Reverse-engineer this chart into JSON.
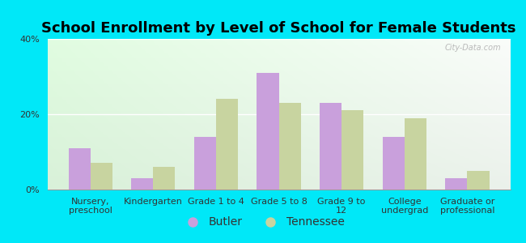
{
  "title": "School Enrollment by Level of School for Female Students",
  "categories": [
    "Nursery,\npreschool",
    "Kindergarten",
    "Grade 1 to 4",
    "Grade 5 to 8",
    "Grade 9 to\n12",
    "College\nundergrad",
    "Graduate or\nprofessional"
  ],
  "butler_values": [
    11,
    3,
    14,
    31,
    23,
    14,
    3
  ],
  "tennessee_values": [
    7,
    6,
    24,
    23,
    21,
    19,
    5
  ],
  "butler_color": "#c9a0dc",
  "tennessee_color": "#c8d4a0",
  "background_outer": "#00e8f8",
  "background_plot_grad_topleft": "#e8f5e8",
  "background_plot_grad_topright": "#f5fffa",
  "background_plot_grad_bottom": "#b8e8d0",
  "title_fontsize": 13,
  "tick_fontsize": 8,
  "legend_fontsize": 10,
  "ylim": [
    0,
    40
  ],
  "yticks": [
    0,
    20,
    40
  ],
  "ytick_labels": [
    "0%",
    "20%",
    "40%"
  ],
  "bar_width": 0.35,
  "watermark": "City-Data.com"
}
